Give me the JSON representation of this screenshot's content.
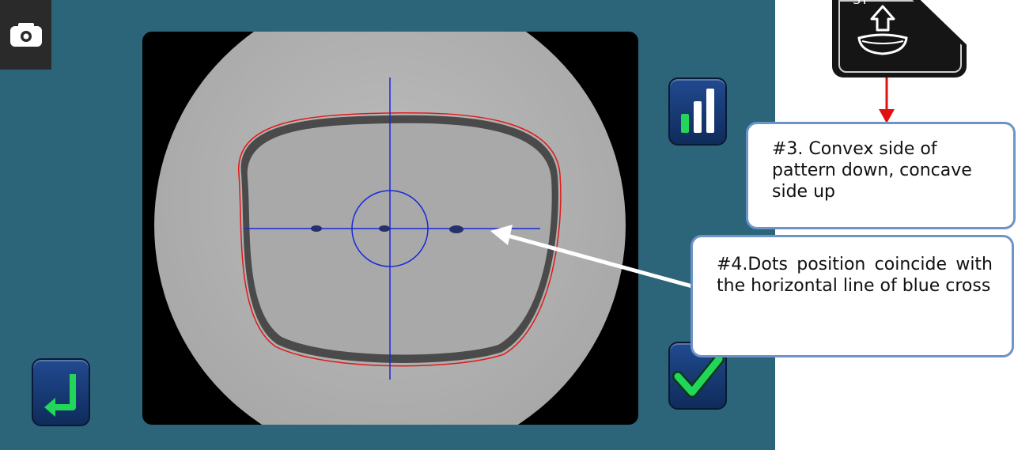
{
  "callouts": {
    "step3": "#3. Convex side of pattern down, concave side up",
    "step4": "#4.Dots position coincide with the horizontal line of blue cross"
  },
  "device_key": {
    "label": "ST"
  },
  "icons": {
    "camera": "camera-icon",
    "stats": "signal-bars-icon",
    "confirm": "checkmark-icon",
    "back": "enter-arrow-icon",
    "key_symbol": "lift-arrow-icon"
  },
  "colors": {
    "screen_bg": "#2c6479",
    "button_blue": "#1a3f7e",
    "accent_green": "#22d65a",
    "crosshair_blue": "#1a28d8",
    "outline_red": "#e01919",
    "pointer_red": "#e01010"
  }
}
